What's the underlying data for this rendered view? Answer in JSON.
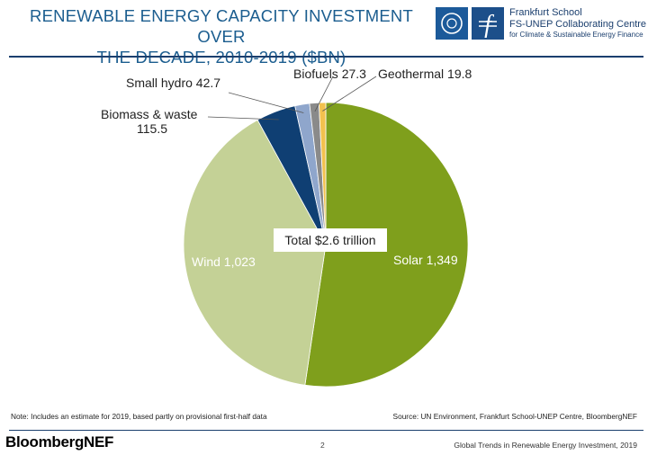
{
  "header": {
    "title_line1": "RENEWABLE ENERGY CAPACITY INVESTMENT OVER",
    "title_line2": "THE DECADE, 2010-2019 ($BN)",
    "partner_name": "Frankfurt School",
    "partner_line2": "FS-UNEP Collaborating Centre",
    "partner_line3": "for Climate & Sustainable Energy Finance"
  },
  "chart_data": {
    "type": "pie",
    "center_label": "Total $2.6 trillion",
    "slices": [
      {
        "label": "Solar",
        "value": 1349,
        "display": "Solar 1,349",
        "color": "#7f9f1c",
        "label_color": "#ffffff"
      },
      {
        "label": "Wind",
        "value": 1023,
        "display": "Wind 1,023",
        "color": "#c4d196",
        "label_color": "#ffffff"
      },
      {
        "label": "Biomass & waste",
        "value": 115.5,
        "display_line1": "Biomass & waste",
        "display_line2": "115.5",
        "color": "#0f3f73",
        "label_color": "#222222"
      },
      {
        "label": "Small hydro",
        "value": 42.7,
        "display": "Small hydro 42.7",
        "color": "#8fa6cc",
        "label_color": "#222222"
      },
      {
        "label": "Biofuels",
        "value": 27.3,
        "display": "Biofuels 27.3",
        "color": "#8a8a8a",
        "label_color": "#222222"
      },
      {
        "label": "Geothermal",
        "value": 19.8,
        "display": "Geothermal 19.8",
        "color": "#f2c14e",
        "label_color": "#222222"
      }
    ]
  },
  "footer": {
    "note": "Note: Includes an estimate for 2019, based partly on provisional first-half data",
    "source": "Source:  UN Environment, Frankfurt School-UNEP Centre, BloombergNEF",
    "brand": "BloombergNEF",
    "page": "2",
    "report": "Global Trends in Renewable Energy Investment, 2019"
  }
}
